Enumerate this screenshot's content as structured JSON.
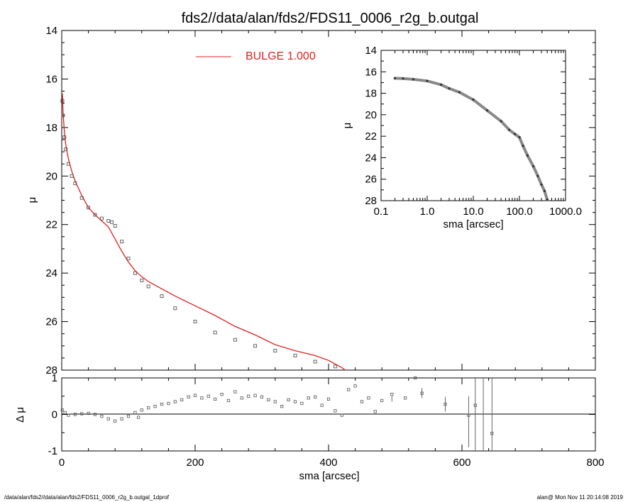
{
  "title": "fds2//data/alan/fds2/FDS11_0006_r2g_b.outgal",
  "footer_left": "/data/alan/fds2//data/alan/fds2/FDS11_0006_r2g_b.outgal_1dprof",
  "footer_right": "alan@  Mon Nov 11 20:14:08 2019",
  "colors": {
    "model": "#e0201e",
    "data": "#555555",
    "axes": "#000000"
  },
  "chart_data": [
    {
      "type": "scatter",
      "ylabel": "μ",
      "xlim": [
        0,
        800
      ],
      "ylim": [
        28,
        14
      ],
      "ytick_labels": [
        "14",
        "16",
        "18",
        "20",
        "22",
        "24",
        "26",
        "28"
      ],
      "legend": {
        "label": "BULGE  1.000",
        "position": "top"
      },
      "series": [
        {
          "name": "BULGE  1.000",
          "style": "line",
          "x": [
            1,
            2,
            4,
            6,
            10,
            15,
            20,
            30,
            40,
            50,
            60,
            70,
            80,
            90,
            100,
            110,
            120,
            130,
            150,
            170,
            200,
            230,
            260,
            290,
            320,
            350,
            380,
            400,
            420,
            425
          ],
          "y": [
            16.6,
            17.4,
            18.2,
            18.7,
            19.3,
            19.8,
            20.2,
            20.8,
            21.3,
            21.6,
            21.85,
            22.1,
            22.6,
            23.1,
            23.55,
            23.9,
            24.15,
            24.35,
            24.65,
            24.95,
            25.35,
            25.75,
            26.2,
            26.55,
            26.95,
            27.2,
            27.4,
            27.6,
            27.9,
            28.0
          ]
        },
        {
          "style": "markers",
          "x": [
            1,
            2,
            4,
            6,
            10,
            15,
            20,
            30,
            40,
            50,
            60,
            70,
            75,
            80,
            90,
            100,
            110,
            120,
            130,
            150,
            170,
            200,
            230,
            260,
            290,
            320,
            350,
            380,
            410
          ],
          "y": [
            16.9,
            17.5,
            18.4,
            18.9,
            19.5,
            20.0,
            20.3,
            20.9,
            21.3,
            21.6,
            21.75,
            21.85,
            21.9,
            22.05,
            22.7,
            23.4,
            24.0,
            24.3,
            24.55,
            24.95,
            25.45,
            26.0,
            26.45,
            26.75,
            27.0,
            27.2,
            27.4,
            27.65,
            27.85
          ]
        }
      ]
    },
    {
      "type": "scatter",
      "xlabel": "sma [arcsec]",
      "ylabel": "Δ μ",
      "xlim": [
        0,
        800
      ],
      "ylim": [
        -1,
        1
      ],
      "xtick_labels": [
        "0",
        "200",
        "400",
        "600",
        "800"
      ],
      "ytick_labels": [
        "1",
        "0",
        "-1"
      ],
      "series": [
        {
          "style": "markers",
          "x": [
            1,
            5,
            10,
            20,
            30,
            40,
            50,
            60,
            70,
            80,
            90,
            100,
            110,
            115,
            120,
            130,
            140,
            150,
            160,
            170,
            180,
            190,
            200,
            210,
            220,
            230,
            240,
            250,
            260,
            270,
            280,
            290,
            300,
            310,
            320,
            330,
            340,
            350,
            360,
            370,
            380,
            390,
            400,
            410,
            420,
            430,
            440,
            450,
            460,
            470,
            480,
            495,
            515,
            530,
            540,
            575,
            610,
            620,
            645
          ],
          "y": [
            0.12,
            0.05,
            -0.02,
            0.0,
            0.02,
            0.03,
            0.0,
            -0.05,
            -0.12,
            -0.18,
            -0.12,
            -0.05,
            0.05,
            -0.08,
            0.12,
            0.18,
            0.22,
            0.28,
            0.3,
            0.35,
            0.4,
            0.48,
            0.52,
            0.45,
            0.5,
            0.42,
            0.55,
            0.38,
            0.62,
            0.45,
            0.5,
            0.52,
            0.48,
            0.4,
            0.35,
            0.22,
            0.4,
            0.35,
            0.3,
            0.45,
            0.48,
            0.25,
            0.42,
            0.1,
            -0.02,
            0.68,
            0.78,
            0.35,
            0.45,
            0.08,
            0.38,
            0.55,
            0.45,
            1.0,
            0.58,
            0.28,
            -0.02,
            0.25,
            -0.52
          ],
          "error_bars": [
            [
              575,
              0.08,
              0.48
            ],
            [
              610,
              -0.9,
              0.5
            ],
            [
              620,
              -1.0,
              1.0
            ],
            [
              632,
              -1.0,
              1.0
            ],
            [
              645,
              -1.0,
              1.0
            ],
            [
              540,
              0.45,
              0.72
            ],
            [
              495,
              0.35,
              0.5
            ]
          ]
        }
      ]
    },
    {
      "type": "scatter",
      "xlabel": "sma [arcsec]",
      "ylabel": "μ",
      "xscale": "log",
      "xlim": [
        0.1,
        1000
      ],
      "ylim": [
        28,
        14
      ],
      "xtick_labels": [
        "0.1",
        "1.0",
        "10.0",
        "100.0",
        "1000.0"
      ],
      "ytick_labels": [
        "14",
        "16",
        "18",
        "20",
        "22",
        "24",
        "26",
        "28"
      ],
      "series": [
        {
          "style": "markers",
          "x": [
            0.2,
            0.3,
            0.5,
            1,
            2,
            3,
            5,
            10,
            20,
            40,
            60,
            80,
            100,
            120,
            150,
            200,
            250,
            300,
            350,
            400
          ],
          "y": [
            16.6,
            16.62,
            16.7,
            16.85,
            17.2,
            17.55,
            17.9,
            18.6,
            19.6,
            20.6,
            21.4,
            21.8,
            22.1,
            22.9,
            23.8,
            24.8,
            25.7,
            26.5,
            27.1,
            27.9
          ]
        }
      ]
    }
  ]
}
